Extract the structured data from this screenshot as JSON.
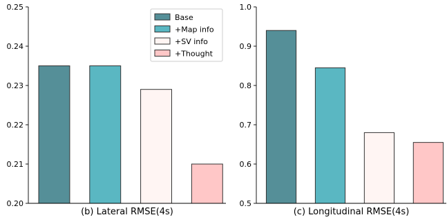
{
  "chart_data": [
    {
      "type": "bar",
      "caption": "(b) Lateral RMSE(4s)",
      "categories": [
        "Base",
        "+Map info",
        "+SV info",
        "+Thought"
      ],
      "values": [
        0.235,
        0.235,
        0.229,
        0.21
      ],
      "colors": [
        "#558f98",
        "#5ab7c2",
        "#fff5f3",
        "#ffc7c7"
      ],
      "ylim": [
        0.2,
        0.25
      ],
      "yticks": [
        "0.20",
        "0.21",
        "0.22",
        "0.23",
        "0.24",
        "0.25"
      ],
      "legend": {
        "placement": "top-right",
        "entries": [
          "Base",
          "+Map info",
          "+SV info",
          "+Thought"
        ]
      },
      "grid": false
    },
    {
      "type": "bar",
      "caption": "(c) Longitudinal RMSE(4s)",
      "categories": [
        "Base",
        "+Map info",
        "+SV info",
        "+Thought"
      ],
      "values": [
        0.94,
        0.845,
        0.68,
        0.655
      ],
      "colors": [
        "#558f98",
        "#5ab7c2",
        "#fff5f3",
        "#ffc7c7"
      ],
      "ylim": [
        0.5,
        1.0
      ],
      "yticks": [
        "0.5",
        "0.6",
        "0.7",
        "0.8",
        "0.9",
        "1.0"
      ],
      "grid": false
    }
  ]
}
